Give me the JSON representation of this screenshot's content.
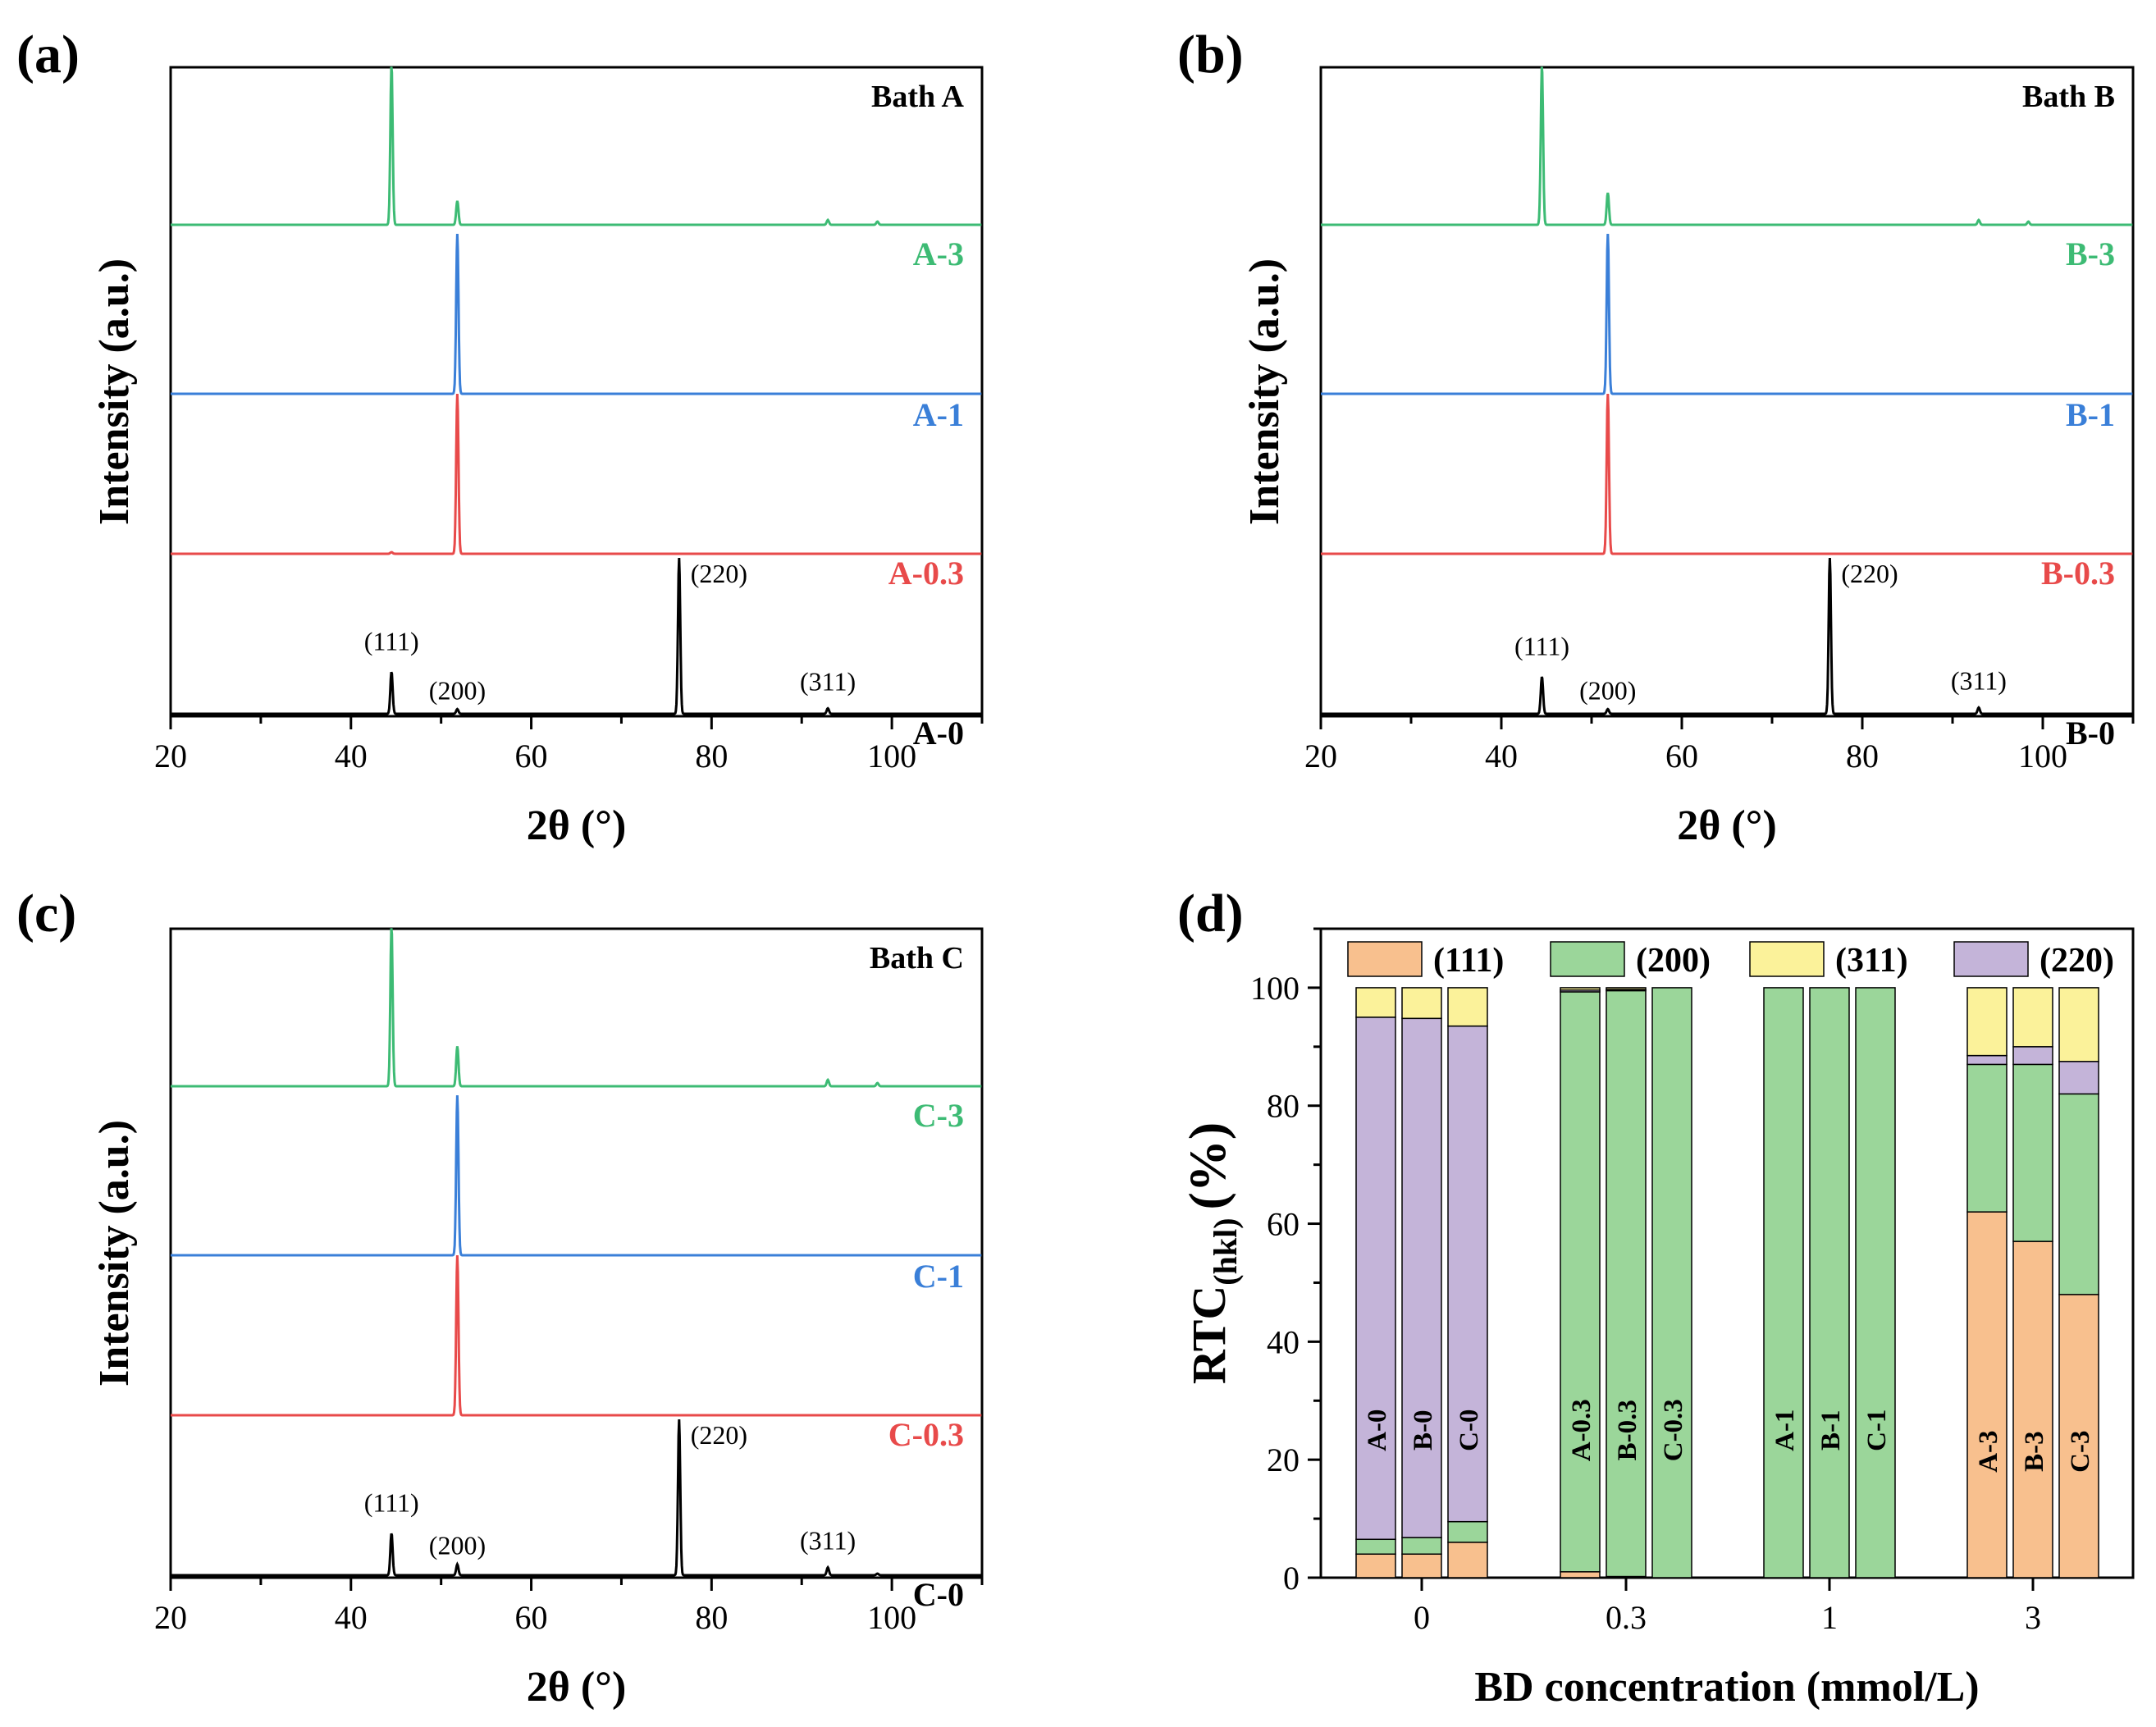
{
  "chart_data": [
    {
      "panel": "(a)",
      "type": "line",
      "title": "Bath A",
      "xlabel": "2θ (°)",
      "ylabel": "Intensity (a.u.)",
      "xlim": [
        20,
        110
      ],
      "xticks": [
        20,
        40,
        60,
        80,
        100
      ],
      "y_ticks_shown": false,
      "series": [
        {
          "name": "A-0",
          "color": "#000000",
          "peaks": [
            {
              "x": 44.5,
              "h": 0.27
            },
            {
              "x": 51.8,
              "h": 0.03
            },
            {
              "x": 76.4,
              "h": 1.0
            },
            {
              "x": 92.9,
              "h": 0.035
            }
          ]
        },
        {
          "name": "A-0.3",
          "color": "#e84a4a",
          "peaks": [
            {
              "x": 44.5,
              "h": 0.01
            },
            {
              "x": 51.8,
              "h": 1.0
            }
          ]
        },
        {
          "name": "A-1",
          "color": "#3a7fd8",
          "peaks": [
            {
              "x": 51.8,
              "h": 1.0
            }
          ]
        },
        {
          "name": "A-3",
          "color": "#3dbb74",
          "peaks": [
            {
              "x": 44.5,
              "h": 1.0
            },
            {
              "x": 51.8,
              "h": 0.15
            },
            {
              "x": 92.9,
              "h": 0.03
            },
            {
              "x": 98.4,
              "h": 0.02
            }
          ]
        }
      ],
      "peak_labels": [
        {
          "x": 44.5,
          "text": "(111)"
        },
        {
          "x": 51.8,
          "text": "(200)"
        },
        {
          "x": 76.4,
          "text": "(220)"
        },
        {
          "x": 92.9,
          "text": "(311)"
        }
      ]
    },
    {
      "panel": "(b)",
      "type": "line",
      "title": "Bath B",
      "xlabel": "2θ (°)",
      "ylabel": "Intensity (a.u.)",
      "xlim": [
        20,
        110
      ],
      "xticks": [
        20,
        40,
        60,
        80,
        100
      ],
      "y_ticks_shown": false,
      "series": [
        {
          "name": "B-0",
          "color": "#000000",
          "peaks": [
            {
              "x": 44.5,
              "h": 0.24
            },
            {
              "x": 51.8,
              "h": 0.03
            },
            {
              "x": 76.4,
              "h": 1.0
            },
            {
              "x": 92.9,
              "h": 0.04
            }
          ]
        },
        {
          "name": "B-0.3",
          "color": "#e84a4a",
          "peaks": [
            {
              "x": 51.8,
              "h": 1.0
            }
          ]
        },
        {
          "name": "B-1",
          "color": "#3a7fd8",
          "peaks": [
            {
              "x": 51.8,
              "h": 1.0
            }
          ]
        },
        {
          "name": "B-3",
          "color": "#3dbb74",
          "peaks": [
            {
              "x": 44.5,
              "h": 1.0
            },
            {
              "x": 51.8,
              "h": 0.2
            },
            {
              "x": 92.9,
              "h": 0.03
            },
            {
              "x": 98.4,
              "h": 0.02
            }
          ]
        }
      ],
      "peak_labels": [
        {
          "x": 44.5,
          "text": "(111)"
        },
        {
          "x": 51.8,
          "text": "(200)"
        },
        {
          "x": 76.4,
          "text": "(220)"
        },
        {
          "x": 92.9,
          "text": "(311)"
        }
      ]
    },
    {
      "panel": "(c)",
      "type": "line",
      "title": "Bath C",
      "xlabel": "2θ (°)",
      "ylabel": "Intensity (a.u.)",
      "xlim": [
        20,
        110
      ],
      "xticks": [
        20,
        40,
        60,
        80,
        100
      ],
      "y_ticks_shown": false,
      "series": [
        {
          "name": "C-0",
          "color": "#000000",
          "peaks": [
            {
              "x": 44.5,
              "h": 0.27
            },
            {
              "x": 51.8,
              "h": 0.07
            },
            {
              "x": 76.4,
              "h": 1.0
            },
            {
              "x": 92.9,
              "h": 0.05
            },
            {
              "x": 98.4,
              "h": 0.01
            }
          ]
        },
        {
          "name": "C-0.3",
          "color": "#e84a4a",
          "peaks": [
            {
              "x": 51.8,
              "h": 1.0
            }
          ]
        },
        {
          "name": "C-1",
          "color": "#3a7fd8",
          "peaks": [
            {
              "x": 51.8,
              "h": 1.0
            }
          ]
        },
        {
          "name": "C-3",
          "color": "#3dbb74",
          "peaks": [
            {
              "x": 44.5,
              "h": 1.0
            },
            {
              "x": 51.8,
              "h": 0.25
            },
            {
              "x": 92.9,
              "h": 0.04
            },
            {
              "x": 98.4,
              "h": 0.02
            }
          ]
        }
      ],
      "peak_labels": [
        {
          "x": 44.5,
          "text": "(111)"
        },
        {
          "x": 51.8,
          "text": "(200)"
        },
        {
          "x": 76.4,
          "text": "(220)"
        },
        {
          "x": 92.9,
          "text": "(311)"
        }
      ]
    },
    {
      "panel": "(d)",
      "type": "bar",
      "stacked": true,
      "xlabel": "BD concentration (mmol/L)",
      "ylabel_main": "RTC",
      "ylabel_sub": "(hkl)",
      "ylabel_unit": "(%)",
      "ylim": [
        0,
        110
      ],
      "yticks": [
        0,
        20,
        40,
        60,
        80,
        100
      ],
      "categories": [
        "0",
        "0.3",
        "1",
        "3"
      ],
      "legend": [
        {
          "key": "111",
          "label": "(111)",
          "color": "#f8c08e"
        },
        {
          "key": "200",
          "label": "(200)",
          "color": "#9bd69a"
        },
        {
          "key": "311",
          "label": "(311)",
          "color": "#fbf29a"
        },
        {
          "key": "220",
          "label": "(220)",
          "color": "#c4b4d9"
        }
      ],
      "stack_order": [
        "111",
        "200",
        "220",
        "311"
      ],
      "groups": [
        {
          "category": "0",
          "bars": [
            {
              "name": "A-0",
              "values": {
                "111": 4,
                "200": 2.5,
                "220": 88.5,
                "311": 5
              }
            },
            {
              "name": "B-0",
              "values": {
                "111": 4,
                "200": 2.8,
                "220": 88,
                "311": 5.2
              }
            },
            {
              "name": "C-0",
              "values": {
                "111": 6,
                "200": 3.5,
                "220": 84,
                "311": 6.5
              }
            }
          ]
        },
        {
          "category": "0.3",
          "bars": [
            {
              "name": "A-0.3",
              "values": {
                "111": 1,
                "200": 98.3,
                "220": 0.3,
                "311": 0.4
              }
            },
            {
              "name": "B-0.3",
              "values": {
                "111": 0.2,
                "200": 99.3,
                "220": 0.2,
                "311": 0.3
              }
            },
            {
              "name": "C-0.3",
              "values": {
                "111": 0,
                "200": 100,
                "220": 0,
                "311": 0
              }
            }
          ]
        },
        {
          "category": "1",
          "bars": [
            {
              "name": "A-1",
              "values": {
                "111": 0,
                "200": 100,
                "220": 0,
                "311": 0
              }
            },
            {
              "name": "B-1",
              "values": {
                "111": 0,
                "200": 100,
                "220": 0,
                "311": 0
              }
            },
            {
              "name": "C-1",
              "values": {
                "111": 0,
                "200": 100,
                "220": 0,
                "311": 0
              }
            }
          ]
        },
        {
          "category": "3",
          "bars": [
            {
              "name": "A-3",
              "values": {
                "111": 62,
                "200": 25,
                "220": 1.5,
                "311": 11.5
              }
            },
            {
              "name": "B-3",
              "values": {
                "111": 57,
                "200": 30,
                "220": 3,
                "311": 10
              }
            },
            {
              "name": "C-3",
              "values": {
                "111": 48,
                "200": 34,
                "220": 5.5,
                "311": 12.5
              }
            }
          ]
        }
      ]
    }
  ]
}
